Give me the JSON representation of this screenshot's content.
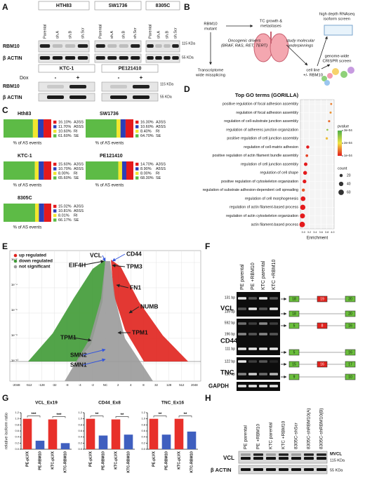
{
  "figure": {
    "letters": [
      "A",
      "B",
      "C",
      "D",
      "E",
      "F",
      "G",
      "H"
    ],
    "panel_a": {
      "blots_top": [
        {
          "cell_line": "HTH83",
          "lanes": [
            "Parental",
            "sh.A",
            "sh.B",
            "sh.Scr"
          ]
        },
        {
          "cell_line": "SW1736",
          "lanes": [
            "Parental",
            "sh.A",
            "sh.B",
            "sh.Scr"
          ]
        },
        {
          "cell_line": "8305C",
          "lanes": [
            "Parental",
            "sh.A",
            "sh.B",
            "sh.Scr"
          ]
        }
      ],
      "rows": [
        "RBM10",
        "β ACTIN"
      ],
      "markers": [
        "115 KDa",
        "55 KDa"
      ],
      "treatment": "Dox",
      "blots_bottom": [
        {
          "cell_line": "KTC-1",
          "lanes": [
            "-",
            "+"
          ]
        },
        {
          "cell_line": "PE121410",
          "lanes": [
            "-",
            "+"
          ]
        }
      ],
      "rows_bottom": [
        "RBM10",
        "β ACTIN"
      ],
      "markers_bottom": [
        "115 KDa",
        "55 KDa"
      ]
    },
    "panel_b": {
      "nodes": [
        {
          "lines": [
            "RBM10",
            "mutant"
          ]
        },
        {
          "lines": [
            "TC growth &",
            "metastases"
          ]
        },
        {
          "lines": [
            "Oncogenic drivers",
            "(BRAF, RAS, RET, TERT)"
          ]
        },
        {
          "lines": [
            "study molecular",
            "underpinnings"
          ]
        },
        {
          "lines": [
            "Transcriptome",
            "wide missplicing"
          ]
        },
        {
          "lines": [
            "cell line",
            "+/- RBM10"
          ]
        },
        {
          "lines": [
            "high depth RNAseq",
            "isoform screen"
          ]
        },
        {
          "lines": [
            "genome-wide",
            "CRISPR screen"
          ]
        }
      ]
    },
    "panel_e": {
      "legend": [
        "up regulated",
        "down regulated",
        "not significant"
      ],
      "xticks": [
        "-2048",
        "-512",
        "-128",
        "-32",
        "-8",
        "-4",
        "-2",
        "NC",
        "2",
        "4",
        "8",
        "32",
        "128",
        "512",
        "2048"
      ],
      "yticks": [
        "1e⁻¹⁰",
        "1e⁻⁸",
        "1e⁻⁶",
        "1e⁻⁴",
        "1e⁻²"
      ],
      "genes": [
        "VCL",
        "CD44",
        "EIF4H",
        "TPM3",
        "FN1",
        "NUMB",
        "TPM1",
        "TPM1",
        "SMN2",
        "SMN1"
      ]
    },
    "panel_f": {
      "lanes": [
        "PE parental",
        "PE +RBM10",
        "KTC parental",
        "KTC +RBM10"
      ],
      "gels": [
        {
          "gene": "VCL",
          "sizes": [
            "131 bp",
            "139 bp"
          ],
          "exons": [
            [
              "18",
              "19",
              "20"
            ],
            [
              "18",
              "20"
            ]
          ]
        },
        {
          "gene": "CD44",
          "sizes": [
            "592 bp",
            "196 bp",
            "111 bp"
          ],
          "exons": [
            [
              "5",
              "8",
              "16"
            ],
            [
              "5",
              "16"
            ]
          ]
        },
        {
          "gene": "TNC",
          "sizes": [
            "122 bp",
            "110 bp"
          ],
          "exons": [
            [
              "15",
              "16",
              "17"
            ],
            [
              "9",
              "10"
            ]
          ]
        },
        {
          "gene": "GAPDH"
        }
      ]
    },
    "panel_h": {
      "lanes": [
        "PE parental",
        "PE +RBM10",
        "KTC parental",
        "KTC +RBM10",
        "8305C-shScr",
        "8305C-shRBM10(A)",
        "8305C-shRBM10(B)"
      ],
      "rows": [
        "VCL",
        "β ACTIN"
      ],
      "markers": [
        "MVCL",
        "115 KDa",
        "55 KDa"
      ]
    }
  },
  "chart_data": [
    {
      "type": "stacked-bar",
      "title": "Hth83",
      "xlabel": "% of AS events",
      "series": [
        {
          "name": "A3SS",
          "color": "#e41a1c",
          "values": [
            16.1
          ],
          "value_labels": [
            "16.10%"
          ]
        },
        {
          "name": "A5SS",
          "color": "#2b3fb8",
          "values": [
            11.7
          ],
          "value_labels": [
            "11.70%"
          ]
        },
        {
          "name": "RI",
          "color": "#f2e62e",
          "values": [
            10.6
          ],
          "value_labels": [
            "10.60%"
          ]
        },
        {
          "name": "SE",
          "color": "#5dbb46",
          "values": [
            61.6
          ],
          "value_labels": [
            "61.60%"
          ]
        }
      ]
    },
    {
      "type": "stacked-bar",
      "title": "SW1736",
      "xlabel": "% of AS events",
      "series": [
        {
          "name": "A3SS",
          "color": "#e41a1c",
          "values": [
            16.3
          ],
          "value_labels": [
            "16.30%"
          ]
        },
        {
          "name": "A5SS",
          "color": "#2b3fb8",
          "values": [
            10.6
          ],
          "value_labels": [
            "10.60%"
          ]
        },
        {
          "name": "RI",
          "color": "#f2e62e",
          "values": [
            8.4
          ],
          "value_labels": [
            "8.40%"
          ]
        },
        {
          "name": "SE",
          "color": "#5dbb46",
          "values": [
            64.7
          ],
          "value_labels": [
            "64.70%"
          ]
        }
      ]
    },
    {
      "type": "stacked-bar",
      "title": "KTC-1",
      "xlabel": "% of AS events",
      "series": [
        {
          "name": "A3SS",
          "color": "#e41a1c",
          "values": [
            15.6
          ],
          "value_labels": [
            "15.60%"
          ]
        },
        {
          "name": "A5SS",
          "color": "#2b3fb8",
          "values": [
            10.7
          ],
          "value_labels": [
            "10.70%"
          ]
        },
        {
          "name": "RI",
          "color": "#f2e62e",
          "values": [
            8.0
          ],
          "value_labels": [
            "8.00%"
          ]
        },
        {
          "name": "SE",
          "color": "#5dbb46",
          "values": [
            65.6
          ],
          "value_labels": [
            "65.60%"
          ]
        }
      ]
    },
    {
      "type": "stacked-bar",
      "title": "PE121410",
      "xlabel": "% of AS events",
      "series": [
        {
          "name": "A3SS",
          "color": "#e41a1c",
          "values": [
            14.7
          ],
          "value_labels": [
            "14.70%"
          ]
        },
        {
          "name": "A5SS",
          "color": "#2b3fb8",
          "values": [
            8.9
          ],
          "value_labels": [
            "8.90%"
          ]
        },
        {
          "name": "RI",
          "color": "#f2e62e",
          "values": [
            8.0
          ],
          "value_labels": [
            "8.00%"
          ]
        },
        {
          "name": "SE",
          "color": "#5dbb46",
          "values": [
            68.3
          ],
          "value_labels": [
            "68.30%"
          ]
        }
      ]
    },
    {
      "type": "stacked-bar",
      "title": "8305C",
      "xlabel": "% of AS events",
      "series": [
        {
          "name": "A3SS",
          "color": "#e41a1c",
          "values": [
            15.02
          ],
          "value_labels": [
            "15.02%"
          ]
        },
        {
          "name": "A5SS",
          "color": "#2b3fb8",
          "values": [
            10.81
          ],
          "value_labels": [
            "10.81%"
          ]
        },
        {
          "name": "RI",
          "color": "#f2e62e",
          "values": [
            8.01
          ],
          "value_labels": [
            "8.01%"
          ]
        },
        {
          "name": "SE",
          "color": "#5dbb46",
          "values": [
            66.17
          ],
          "value_labels": [
            "66.17%"
          ]
        }
      ]
    },
    {
      "type": "dot",
      "title": "Top GO terms (GORILLA)",
      "xlabel": "Enrichment",
      "categories": [
        "positive regulation of focal adhesion assembly",
        "regulation of focal adhesion assembly",
        "regulation of cell-substrate junction assembly",
        "regulation of adherens junction organization",
        "positive regulation of cell junction assembly",
        "regulation of cell-matrix adhesion",
        "positive regulation of actin filament bundle assembly",
        "regulation of cell junction assembly",
        "regulation of cell shape",
        "positive regulation of cytoskeleton organization",
        "regulation of substrate adhesion-dependent cell spreading",
        "regulation of cell morphogenesis",
        "regulation of actin filament-based process",
        "regulation of actin cytoskeleton organization",
        "actin filament-based process"
      ],
      "values": [
        3.95,
        3.93,
        3.88,
        3.82,
        3.8,
        3.15,
        3.12,
        3.08,
        3.06,
        3.04,
        3.0,
        2.99,
        2.98,
        2.97,
        2.96
      ],
      "sizes": [
        8,
        9,
        10,
        7,
        11,
        20,
        14,
        25,
        30,
        28,
        20,
        45,
        55,
        50,
        62
      ],
      "pvalues": [
        0.00015,
        0.00016,
        0.00014,
        0.00026,
        0.00018,
        0.0001,
        0.00012,
        8e-05,
        7e-05,
        0.0001,
        0.00013,
        6e-05,
        5e-05,
        5e-05,
        4e-05
      ],
      "xlim": [
        2.9,
        4.05
      ],
      "xticks": [
        {
          "value": 3,
          "label": "3.0"
        },
        3.2,
        3.4,
        3.6,
        3.8,
        {
          "value": 4,
          "label": "4.0"
        }
      ],
      "pvalue_legend": {
        "title": "pvalue",
        "ticks": [
          {
            "value": 0.0003,
            "label": "3e-04"
          },
          {
            "value": 0.0002,
            "label": "2e-04"
          },
          {
            "value": 0.0001,
            "label": "1e-04"
          }
        ]
      },
      "count_legend": {
        "title": "count",
        "values": [
          20,
          40,
          60
        ]
      }
    },
    {
      "type": "bar",
      "title": "VCL_Ex19",
      "ylabel": "relative isoform ratio",
      "categories": [
        "PE-pLVX",
        "PE-RBM10",
        "KTC-pLVX",
        "KTC-RBM10"
      ],
      "values": [
        1.0,
        0.28,
        0.98,
        0.2
      ],
      "colors": [
        "#e8302a",
        "#3f5fbf",
        "#e8302a",
        "#3f5fbf"
      ],
      "annotations": [
        "***",
        "***"
      ],
      "ylim": [
        0,
        1.2
      ],
      "yticks": [
        {
          "value": 0,
          "label": "0.0"
        },
        0.2,
        0.4,
        0.6,
        0.8,
        {
          "value": 1,
          "label": "1.0"
        },
        1.2
      ]
    },
    {
      "type": "bar",
      "title": "CD44_Ex8",
      "categories": [
        "PE-pLVX",
        "PE-RBM10",
        "KTC-pLVX",
        "KTC-RBM10"
      ],
      "values": [
        1.0,
        0.45,
        0.98,
        0.48
      ],
      "colors": [
        "#e8302a",
        "#3f5fbf",
        "#e8302a",
        "#3f5fbf"
      ],
      "annotations": [
        "**",
        "**"
      ],
      "ylim": [
        0,
        1.2
      ],
      "yticks": [
        {
          "value": 0,
          "label": "0.0"
        },
        0.2,
        0.4,
        0.6,
        0.8,
        {
          "value": 1,
          "label": "1.0"
        },
        1.2
      ]
    },
    {
      "type": "bar",
      "title": "TNC_Ex16",
      "categories": [
        "PE-pLVX",
        "PE-RBM10",
        "KTC-pLVX",
        "KTC-RBM10"
      ],
      "values": [
        1.0,
        0.48,
        1.0,
        0.58
      ],
      "colors": [
        "#e8302a",
        "#3f5fbf",
        "#e8302a",
        "#3f5fbf"
      ],
      "annotations": [
        "**",
        "**"
      ],
      "ylim": [
        0,
        1.2
      ],
      "yticks": [
        {
          "value": 0,
          "label": "0.0"
        },
        0.2,
        0.4,
        0.6,
        0.8,
        {
          "value": 1,
          "label": "1.0"
        },
        1.2
      ]
    }
  ]
}
